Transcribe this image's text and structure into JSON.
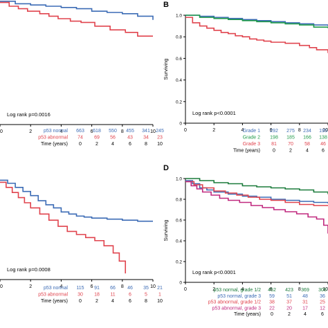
{
  "chart_data": [
    {
      "panel_id": "A",
      "panel_letter": "",
      "type": "line",
      "subtype": "kaplan-meier",
      "title": "",
      "xlabel": "",
      "ylabel": "",
      "xlim": [
        0,
        10
      ],
      "ylim": [
        0,
        1
      ],
      "x_ticks": [
        0,
        2,
        4,
        6,
        8,
        10
      ],
      "annotation": "Log rank p=0.0016",
      "series": [
        {
          "name": "p53 normal",
          "color": "#3b6bb5",
          "x": [
            0,
            1,
            2,
            3,
            4,
            5,
            6,
            7,
            8,
            9,
            10
          ],
          "y": [
            0.99,
            0.97,
            0.96,
            0.95,
            0.94,
            0.93,
            0.91,
            0.9,
            0.89,
            0.87,
            0.84
          ]
        },
        {
          "name": "p53 abnormal",
          "color": "#e0434d",
          "x": [
            0,
            0.6,
            1.2,
            1.8,
            2.6,
            3.2,
            3.8,
            4.6,
            5.3,
            6.2,
            7.2,
            8.2,
            9,
            10
          ],
          "y": [
            0.98,
            0.95,
            0.93,
            0.91,
            0.89,
            0.87,
            0.85,
            0.83,
            0.82,
            0.79,
            0.76,
            0.74,
            0.71,
            0.71
          ]
        }
      ],
      "risk_table": {
        "time_label": "Time (years)",
        "times": [
          0,
          2,
          4,
          6,
          8,
          10
        ],
        "rows": [
          {
            "label": "p53 normal",
            "color": "#3b6bb5",
            "values": [
              663,
              618,
              550,
              455,
              341,
              245
            ]
          },
          {
            "label": "p53 abnormal",
            "color": "#e0434d",
            "values": [
              74,
              69,
              56,
              43,
              34,
              23
            ]
          }
        ]
      }
    },
    {
      "panel_id": "B",
      "panel_letter": "B",
      "type": "line",
      "subtype": "kaplan-meier",
      "title": "",
      "xlabel": "",
      "ylabel": "Surviving",
      "xlim": [
        0,
        10
      ],
      "ylim": [
        0,
        1.0
      ],
      "x_ticks": [
        0,
        2,
        4,
        6,
        8,
        10
      ],
      "y_ticks": [
        0,
        0.2,
        0.4,
        0.6,
        0.8,
        1.0
      ],
      "annotation": "Log rank p<0.0001",
      "series": [
        {
          "name": "Grade 1",
          "color": "#3b6bb5",
          "x": [
            0,
            1,
            2,
            3,
            4,
            5,
            6,
            7,
            8,
            9,
            10
          ],
          "y": [
            1.0,
            0.99,
            0.98,
            0.97,
            0.96,
            0.95,
            0.94,
            0.93,
            0.92,
            0.91,
            0.9
          ]
        },
        {
          "name": "Grade 2",
          "color": "#1f9a49",
          "x": [
            0,
            1,
            2,
            3,
            4,
            5,
            6,
            7,
            8,
            9,
            10
          ],
          "y": [
            1.0,
            0.98,
            0.97,
            0.96,
            0.95,
            0.94,
            0.93,
            0.92,
            0.91,
            0.89,
            0.88
          ]
        },
        {
          "name": "Grade 3",
          "color": "#e0434d",
          "x": [
            0,
            0.5,
            1,
            1.5,
            2,
            2.5,
            3,
            3.5,
            4,
            4.5,
            5,
            5.5,
            6,
            7,
            8,
            8.7,
            9.2,
            10
          ],
          "y": [
            0.98,
            0.93,
            0.9,
            0.88,
            0.86,
            0.84,
            0.83,
            0.81,
            0.8,
            0.78,
            0.77,
            0.76,
            0.75,
            0.74,
            0.72,
            0.7,
            0.68,
            0.65
          ]
        }
      ],
      "risk_table": {
        "time_label": "Time (years)",
        "times": [
          0,
          2,
          4,
          6,
          8
        ],
        "rows": [
          {
            "label": "Grade 1",
            "color": "#3b6bb5",
            "values": [
              292,
              275,
              234,
              195,
              15
            ]
          },
          {
            "label": "Grade 2",
            "color": "#1f9a49",
            "values": [
              198,
              185,
              166,
              138,
              9
            ]
          },
          {
            "label": "Grade 3",
            "color": "#e0434d",
            "values": [
              81,
              70,
              58,
              46,
              3
            ]
          }
        ]
      }
    },
    {
      "panel_id": "C",
      "panel_letter": "",
      "type": "line",
      "subtype": "kaplan-meier",
      "title": "",
      "xlabel": "",
      "ylabel": "",
      "xlim": [
        0,
        10
      ],
      "ylim": [
        0,
        1
      ],
      "x_ticks": [
        0,
        2,
        4,
        6,
        8,
        10
      ],
      "annotation": "Log rank p=0.0008",
      "series": [
        {
          "name": "p53 normal",
          "color": "#3b6bb5",
          "x": [
            0,
            0.5,
            1,
            1.5,
            2,
            2.5,
            3,
            3.5,
            4,
            4.5,
            5,
            5.5,
            6,
            7,
            8,
            9,
            10
          ],
          "y": [
            0.97,
            0.94,
            0.9,
            0.86,
            0.82,
            0.77,
            0.73,
            0.7,
            0.66,
            0.64,
            0.62,
            0.61,
            0.6,
            0.59,
            0.58,
            0.57,
            0.57
          ]
        },
        {
          "name": "p53 abnormal",
          "color": "#e0434d",
          "x": [
            0,
            0.4,
            0.8,
            1.2,
            1.6,
            2,
            2.6,
            3.2,
            3.8,
            4.4,
            5,
            5.6,
            6.2,
            6.8,
            7.4,
            7.8,
            8.2
          ],
          "y": [
            0.95,
            0.9,
            0.85,
            0.8,
            0.75,
            0.7,
            0.64,
            0.58,
            0.52,
            0.47,
            0.44,
            0.41,
            0.38,
            0.33,
            0.26,
            0.18,
            0.06
          ]
        }
      ],
      "risk_table": {
        "time_label": "Time (years)",
        "times": [
          0,
          2,
          4,
          6,
          8,
          10
        ],
        "rows": [
          {
            "label": "p53 normal",
            "color": "#3b6bb5",
            "values": [
              115,
              91,
              66,
              46,
              35,
              21
            ]
          },
          {
            "label": "p53 abnormal",
            "color": "#e0434d",
            "values": [
              30,
              18,
              11,
              6,
              5,
              1
            ]
          }
        ]
      }
    },
    {
      "panel_id": "D",
      "panel_letter": "D",
      "type": "line",
      "subtype": "kaplan-meier",
      "title": "",
      "xlabel": "",
      "ylabel": "Surviving",
      "xlim": [
        0,
        10
      ],
      "ylim": [
        0,
        1.0
      ],
      "x_ticks": [
        0,
        2,
        4,
        6,
        8,
        10
      ],
      "y_ticks": [
        0,
        0.2,
        0.4,
        0.6,
        0.8,
        1.0
      ],
      "annotation": "Log rank p<0.0001",
      "series": [
        {
          "name": "p53 normal, grade 1/2",
          "color": "#1a7a3a",
          "x": [
            0,
            1,
            2,
            3,
            4,
            5,
            6,
            7,
            8,
            9,
            10
          ],
          "y": [
            1.0,
            0.98,
            0.96,
            0.95,
            0.93,
            0.92,
            0.91,
            0.9,
            0.89,
            0.87,
            0.85
          ]
        },
        {
          "name": "p53 normal, grade 3",
          "color": "#3b6bb5",
          "x": [
            0,
            0.5,
            1,
            1.5,
            2,
            3,
            4,
            5,
            6,
            7,
            8,
            9,
            10
          ],
          "y": [
            0.98,
            0.95,
            0.91,
            0.89,
            0.87,
            0.85,
            0.83,
            0.82,
            0.8,
            0.79,
            0.78,
            0.77,
            0.76
          ]
        },
        {
          "name": "p53 abnormal, grade 1/2",
          "color": "#e0434d",
          "x": [
            0,
            0.6,
            1.2,
            2,
            2.8,
            3.6,
            4.4,
            5.2,
            6,
            7,
            8,
            9,
            10
          ],
          "y": [
            0.97,
            0.94,
            0.91,
            0.88,
            0.86,
            0.84,
            0.82,
            0.8,
            0.79,
            0.77,
            0.75,
            0.74,
            0.74
          ]
        },
        {
          "name": "p53 abnormal, grade 3",
          "color": "#c0287e",
          "x": [
            0,
            0.4,
            0.8,
            1.2,
            1.8,
            2.4,
            3,
            3.8,
            4.6,
            5.4,
            6.2,
            7,
            7.8,
            8.6,
            9.2,
            9.7,
            10
          ],
          "y": [
            0.97,
            0.93,
            0.9,
            0.87,
            0.84,
            0.81,
            0.79,
            0.77,
            0.74,
            0.72,
            0.7,
            0.68,
            0.66,
            0.63,
            0.61,
            0.55,
            0.47
          ]
        }
      ],
      "risk_table": {
        "time_label": "Time (years)",
        "times": [
          0,
          2,
          4,
          6,
          8
        ],
        "rows": [
          {
            "label": "p53 normal, grade 1/2",
            "color": "#1a7a3a",
            "values": [
              452,
              423,
              369,
              308,
              230
            ]
          },
          {
            "label": "p53 normal, grade 3",
            "color": "#3b6bb5",
            "values": [
              59,
              51,
              48,
              36,
              27
            ]
          },
          {
            "label": "p53 abnormal, grade 1/2",
            "color": "#e0434d",
            "values": [
              38,
              37,
              31,
              25,
              19
            ]
          },
          {
            "label": "p53 abnormal, grade 3",
            "color": "#c0287e",
            "values": [
              22,
              20,
              17,
              12,
              9
            ]
          }
        ]
      }
    }
  ]
}
